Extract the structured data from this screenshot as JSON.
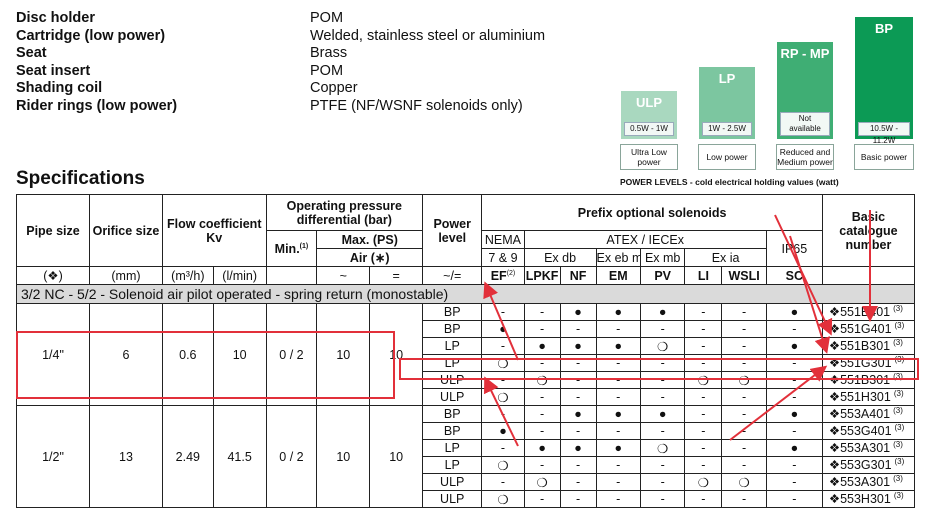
{
  "materials": [
    {
      "label": "Disc holder",
      "value": "POM"
    },
    {
      "label": "Cartridge (low power)",
      "value": "Welded, stainless steel or aluminium"
    },
    {
      "label": "Seat",
      "value": "Brass"
    },
    {
      "label": "Seat insert",
      "value": "POM"
    },
    {
      "label": "Shading coil",
      "value": "Copper"
    },
    {
      "label": "Rider rings (low power)",
      "value": "PTFE (NF/WSNF solenoids only)"
    }
  ],
  "power_levels": {
    "levels": [
      {
        "name": "ULP",
        "range": "0.5W - 1W",
        "caption": "Ultra Low power"
      },
      {
        "name": "LP",
        "range": "1W - 2.5W",
        "caption": "Low power"
      },
      {
        "name": "RP - MP",
        "range": "Not available",
        "caption": "Reduced and Medium power"
      },
      {
        "name": "BP",
        "range": "10.5W - 11.2W",
        "caption": "Basic power"
      }
    ],
    "footer": "POWER LEVELS - cold electrical holding values (watt)",
    "colors": {
      "ULP": "#a9d8bf",
      "LP": "#7cc6a0",
      "RP - MP": "#3fae74",
      "BP": "#0c9a55"
    }
  },
  "spec_title": "Specifications",
  "header": {
    "pipe_size": "Pipe size",
    "orifice_size": "Orifice size",
    "flow_coefficient": "Flow coefficient Kv",
    "operating_pressure": "Operating pressure differential (bar)",
    "min": "Min.",
    "min_note": "(1)",
    "max": "Max. (PS)",
    "air": "Air (∗)",
    "power_level": "Power level",
    "prefix": "Prefix optional solenoids",
    "nema": "NEMA",
    "nema_sub": "7 & 9",
    "atex": "ATEX / IECEx",
    "ex_db": "Ex db",
    "ex_ebmb": "Ex eb mb",
    "ex_mb": "Ex mb",
    "ex_ia": "Ex ia",
    "ip65": "IP65",
    "basic_catalogue": "Basic catalogue number",
    "units": {
      "pipe": "(❖)",
      "orifice": "(mm)",
      "flow_m3h": "(m³/h)",
      "flow_lmin": "(l/min)",
      "tilde": "~",
      "equal": "=",
      "power": "~/=",
      "ef": "EF",
      "ef_note": "(2)",
      "lpkf": "LPKF",
      "nf": "NF",
      "em": "EM",
      "pv": "PV",
      "li": "LI",
      "wsli": "WSLI",
      "sc": "SC"
    }
  },
  "section_title": "3/2 NC - 5/2 - Solenoid air pilot operated - spring return (monostable)",
  "groups": [
    {
      "pipe": "1/4\"",
      "orifice": "6",
      "kv_m3h": "0.6",
      "kv_lmin": "10",
      "min": "0 / 2",
      "max_ac": "10",
      "max_dc": "10"
    },
    {
      "pipe": "1/2\"",
      "orifice": "13",
      "kv_m3h": "2.49",
      "kv_lmin": "41.5",
      "min": "0 / 2",
      "max_ac": "10",
      "max_dc": "10"
    }
  ],
  "rows": [
    {
      "power": "BP",
      "ef": "-",
      "lpkf": "-",
      "nf": "●",
      "em": "●",
      "pv": "●",
      "li": "-",
      "wsli": "-",
      "sc": "●",
      "catalogue": "❖551B401",
      "note": "(3)"
    },
    {
      "power": "BP",
      "ef": "●",
      "lpkf": "-",
      "nf": "-",
      "em": "-",
      "pv": "-",
      "li": "-",
      "wsli": "-",
      "sc": "-",
      "catalogue": "❖551G401",
      "note": "(3)"
    },
    {
      "power": "LP",
      "ef": "-",
      "lpkf": "●",
      "nf": "●",
      "em": "●",
      "pv": "❍",
      "li": "-",
      "wsli": "-",
      "sc": "●",
      "catalogue": "❖551B301",
      "note": "(3)"
    },
    {
      "power": "LP",
      "ef": "❍",
      "lpkf": "-",
      "nf": "-",
      "em": "-",
      "pv": "-",
      "li": "-",
      "wsli": "-",
      "sc": "-",
      "catalogue": "❖551G301",
      "note": "(3)"
    },
    {
      "power": "ULP",
      "ef": "-",
      "lpkf": "❍",
      "nf": "-",
      "em": "-",
      "pv": "-",
      "li": "❍",
      "wsli": "❍",
      "sc": "-",
      "catalogue": "❖551B301",
      "note": "(3)"
    },
    {
      "power": "ULP",
      "ef": "❍",
      "lpkf": "-",
      "nf": "-",
      "em": "-",
      "pv": "-",
      "li": "-",
      "wsli": "-",
      "sc": "-",
      "catalogue": "❖551H301",
      "note": "(3)"
    },
    {
      "power": "BP",
      "ef": "-",
      "lpkf": "-",
      "nf": "●",
      "em": "●",
      "pv": "●",
      "li": "-",
      "wsli": "-",
      "sc": "●",
      "catalogue": "❖553A401",
      "note": "(3)"
    },
    {
      "power": "BP",
      "ef": "●",
      "lpkf": "-",
      "nf": "-",
      "em": "-",
      "pv": "-",
      "li": "-",
      "wsli": "-",
      "sc": "-",
      "catalogue": "❖553G401",
      "note": "(3)"
    },
    {
      "power": "LP",
      "ef": "-",
      "lpkf": "●",
      "nf": "●",
      "em": "●",
      "pv": "❍",
      "li": "-",
      "wsli": "-",
      "sc": "●",
      "catalogue": "❖553A301",
      "note": "(3)"
    },
    {
      "power": "LP",
      "ef": "❍",
      "lpkf": "-",
      "nf": "-",
      "em": "-",
      "pv": "-",
      "li": "-",
      "wsli": "-",
      "sc": "-",
      "catalogue": "❖553G301",
      "note": "(3)"
    },
    {
      "power": "ULP",
      "ef": "-",
      "lpkf": "❍",
      "nf": "-",
      "em": "-",
      "pv": "-",
      "li": "❍",
      "wsli": "❍",
      "sc": "-",
      "catalogue": "❖553A301",
      "note": "(3)"
    },
    {
      "power": "ULP",
      "ef": "❍",
      "lpkf": "-",
      "nf": "-",
      "em": "-",
      "pv": "-",
      "li": "-",
      "wsli": "-",
      "sc": "-",
      "catalogue": "❖553H301",
      "note": "(3)"
    }
  ],
  "annotation_color": "#e2303a"
}
